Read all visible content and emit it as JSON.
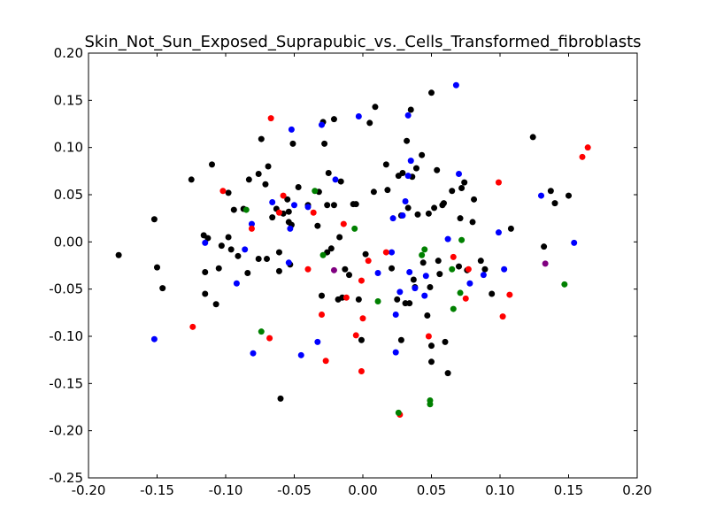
{
  "chart_data": {
    "type": "scatter",
    "title": "Skin_Not_Sun_Exposed_Suprapubic_vs._Cells_Transformed_fibroblasts",
    "xlabel": "",
    "ylabel": "",
    "xlim": [
      -0.2,
      0.2
    ],
    "ylim": [
      -0.25,
      0.2
    ],
    "xticks": [
      "-0.20",
      "-0.15",
      "-0.10",
      "-0.05",
      "0.00",
      "0.05",
      "0.10",
      "0.15",
      "0.20"
    ],
    "yticks": [
      "-0.25",
      "-0.20",
      "-0.15",
      "-0.10",
      "-0.05",
      "0.00",
      "0.05",
      "0.10",
      "0.15",
      "0.20"
    ],
    "grid": false,
    "series": [
      {
        "color": "#000000",
        "points": [
          [
            -0.178,
            -0.014
          ],
          [
            -0.152,
            0.024
          ],
          [
            -0.15,
            -0.027
          ],
          [
            -0.146,
            -0.049
          ],
          [
            -0.125,
            0.066
          ],
          [
            -0.116,
            0.007
          ],
          [
            -0.115,
            -0.032
          ],
          [
            -0.115,
            -0.055
          ],
          [
            -0.113,
            0.004
          ],
          [
            -0.11,
            0.082
          ],
          [
            -0.107,
            -0.066
          ],
          [
            -0.105,
            -0.028
          ],
          [
            -0.103,
            -0.004
          ],
          [
            -0.098,
            0.005
          ],
          [
            -0.098,
            0.052
          ],
          [
            -0.096,
            -0.008
          ],
          [
            -0.094,
            0.034
          ],
          [
            -0.091,
            -0.015
          ],
          [
            -0.087,
            0.035
          ],
          [
            -0.084,
            -0.033
          ],
          [
            -0.083,
            0.066
          ],
          [
            -0.076,
            -0.018
          ],
          [
            -0.076,
            0.072
          ],
          [
            -0.074,
            0.109
          ],
          [
            -0.071,
            0.061
          ],
          [
            -0.07,
            -0.018
          ],
          [
            -0.069,
            0.08
          ],
          [
            -0.066,
            0.026
          ],
          [
            -0.063,
            0.035
          ],
          [
            -0.061,
            -0.031
          ],
          [
            -0.061,
            -0.011
          ],
          [
            -0.06,
            -0.166
          ],
          [
            -0.058,
            0.03
          ],
          [
            -0.055,
            0.045
          ],
          [
            -0.054,
            0.021
          ],
          [
            -0.054,
            0.032
          ],
          [
            -0.053,
            -0.024
          ],
          [
            -0.052,
            0.018
          ],
          [
            -0.051,
            0.104
          ],
          [
            -0.047,
            0.058
          ],
          [
            -0.04,
            0.039
          ],
          [
            -0.033,
            0.017
          ],
          [
            -0.032,
            0.053
          ],
          [
            -0.03,
            -0.057
          ],
          [
            -0.029,
            0.127
          ],
          [
            -0.028,
            0.104
          ],
          [
            -0.026,
            -0.011
          ],
          [
            -0.026,
            0.039
          ],
          [
            -0.025,
            0.073
          ],
          [
            -0.023,
            -0.007
          ],
          [
            -0.021,
            0.13
          ],
          [
            -0.021,
            0.039
          ],
          [
            -0.018,
            -0.061
          ],
          [
            -0.017,
            0.005
          ],
          [
            -0.016,
            0.064
          ],
          [
            -0.015,
            -0.059
          ],
          [
            -0.013,
            -0.029
          ],
          [
            -0.01,
            -0.035
          ],
          [
            -0.007,
            0.04
          ],
          [
            -0.005,
            0.04
          ],
          [
            -0.003,
            -0.061
          ],
          [
            -0.001,
            -0.104
          ],
          [
            0.002,
            -0.013
          ],
          [
            0.005,
            0.126
          ],
          [
            0.008,
            0.053
          ],
          [
            0.009,
            0.143
          ],
          [
            0.017,
            0.082
          ],
          [
            0.018,
            0.055
          ],
          [
            0.021,
            -0.028
          ],
          [
            0.025,
            -0.061
          ],
          [
            0.026,
            0.07
          ],
          [
            0.028,
            -0.104
          ],
          [
            0.028,
            0.028
          ],
          [
            0.029,
            0.073
          ],
          [
            0.031,
            -0.065
          ],
          [
            0.032,
            0.107
          ],
          [
            0.033,
            0.036
          ],
          [
            0.034,
            -0.065
          ],
          [
            0.035,
            0.14
          ],
          [
            0.036,
            0.069
          ],
          [
            0.037,
            -0.04
          ],
          [
            0.038,
            -0.048
          ],
          [
            0.039,
            0.078
          ],
          [
            0.04,
            0.029
          ],
          [
            0.043,
            0.092
          ],
          [
            0.044,
            -0.022
          ],
          [
            0.047,
            -0.078
          ],
          [
            0.048,
            0.03
          ],
          [
            0.049,
            -0.048
          ],
          [
            0.05,
            0.158
          ],
          [
            0.05,
            -0.11
          ],
          [
            0.05,
            -0.127
          ],
          [
            0.052,
            0.036
          ],
          [
            0.054,
            0.076
          ],
          [
            0.055,
            -0.02
          ],
          [
            0.056,
            -0.034
          ],
          [
            0.058,
            0.039
          ],
          [
            0.059,
            0.041
          ],
          [
            0.06,
            -0.106
          ],
          [
            0.062,
            -0.139
          ],
          [
            0.065,
            0.054
          ],
          [
            0.07,
            -0.026
          ],
          [
            0.071,
            0.025
          ],
          [
            0.072,
            0.057
          ],
          [
            0.074,
            0.063
          ],
          [
            0.076,
            -0.03
          ],
          [
            0.08,
            0.021
          ],
          [
            0.081,
            0.045
          ],
          [
            0.086,
            -0.02
          ],
          [
            0.089,
            -0.029
          ],
          [
            0.094,
            -0.055
          ],
          [
            0.108,
            0.014
          ],
          [
            0.124,
            0.111
          ],
          [
            0.132,
            -0.005
          ],
          [
            0.137,
            0.054
          ],
          [
            0.14,
            0.041
          ],
          [
            0.15,
            0.049
          ]
        ]
      },
      {
        "color": "#0000ff",
        "points": [
          [
            -0.152,
            -0.103
          ],
          [
            -0.115,
            -0.001
          ],
          [
            -0.092,
            -0.044
          ],
          [
            -0.086,
            -0.008
          ],
          [
            -0.081,
            0.019
          ],
          [
            -0.08,
            -0.118
          ],
          [
            -0.066,
            0.042
          ],
          [
            -0.054,
            -0.022
          ],
          [
            -0.053,
            0.014
          ],
          [
            -0.052,
            0.119
          ],
          [
            -0.05,
            0.039
          ],
          [
            -0.045,
            -0.12
          ],
          [
            -0.04,
            0.037
          ],
          [
            -0.033,
            -0.106
          ],
          [
            -0.03,
            0.124
          ],
          [
            -0.02,
            0.066
          ],
          [
            -0.003,
            0.133
          ],
          [
            0.011,
            -0.033
          ],
          [
            0.021,
            -0.011
          ],
          [
            0.022,
            0.025
          ],
          [
            0.024,
            -0.077
          ],
          [
            0.024,
            -0.117
          ],
          [
            0.027,
            -0.053
          ],
          [
            0.029,
            0.028
          ],
          [
            0.031,
            0.043
          ],
          [
            0.033,
            0.07
          ],
          [
            0.033,
            0.134
          ],
          [
            0.034,
            -0.032
          ],
          [
            0.035,
            0.086
          ],
          [
            0.038,
            -0.049
          ],
          [
            0.045,
            -0.057
          ],
          [
            0.046,
            -0.036
          ],
          [
            0.062,
            0.003
          ],
          [
            0.068,
            0.166
          ],
          [
            0.07,
            0.072
          ],
          [
            0.078,
            -0.044
          ],
          [
            0.088,
            -0.035
          ],
          [
            0.099,
            0.01
          ],
          [
            0.103,
            -0.029
          ],
          [
            0.13,
            0.049
          ],
          [
            0.154,
            -0.001
          ]
        ]
      },
      {
        "color": "#ff0000",
        "points": [
          [
            -0.124,
            -0.09
          ],
          [
            -0.102,
            0.054
          ],
          [
            -0.081,
            0.014
          ],
          [
            -0.068,
            -0.102
          ],
          [
            -0.067,
            0.131
          ],
          [
            -0.061,
            0.031
          ],
          [
            -0.058,
            0.049
          ],
          [
            -0.04,
            -0.029
          ],
          [
            -0.036,
            0.031
          ],
          [
            -0.03,
            -0.077
          ],
          [
            -0.027,
            -0.126
          ],
          [
            -0.014,
            0.019
          ],
          [
            -0.012,
            -0.059
          ],
          [
            -0.005,
            -0.099
          ],
          [
            -0.001,
            -0.137
          ],
          [
            -0.001,
            -0.041
          ],
          [
            0.0,
            -0.081
          ],
          [
            0.004,
            -0.02
          ],
          [
            0.017,
            -0.011
          ],
          [
            0.027,
            -0.183
          ],
          [
            0.048,
            -0.1
          ],
          [
            0.066,
            -0.016
          ],
          [
            0.075,
            -0.06
          ],
          [
            0.077,
            -0.029
          ],
          [
            0.099,
            0.063
          ],
          [
            0.102,
            -0.079
          ],
          [
            0.107,
            -0.056
          ],
          [
            0.16,
            0.09
          ],
          [
            0.164,
            0.1
          ]
        ]
      },
      {
        "color": "#008000",
        "points": [
          [
            -0.085,
            0.034
          ],
          [
            -0.074,
            -0.095
          ],
          [
            -0.035,
            0.054
          ],
          [
            -0.029,
            -0.014
          ],
          [
            -0.006,
            0.014
          ],
          [
            0.011,
            -0.063
          ],
          [
            0.026,
            -0.181
          ],
          [
            0.043,
            -0.014
          ],
          [
            0.045,
            -0.008
          ],
          [
            0.049,
            -0.168
          ],
          [
            0.049,
            -0.172
          ],
          [
            0.065,
            -0.029
          ],
          [
            0.066,
            -0.071
          ],
          [
            0.071,
            -0.054
          ],
          [
            0.072,
            0.002
          ],
          [
            0.147,
            -0.045
          ]
        ]
      },
      {
        "color": "#800080",
        "points": [
          [
            -0.021,
            -0.03
          ],
          [
            0.133,
            -0.023
          ]
        ]
      }
    ]
  }
}
